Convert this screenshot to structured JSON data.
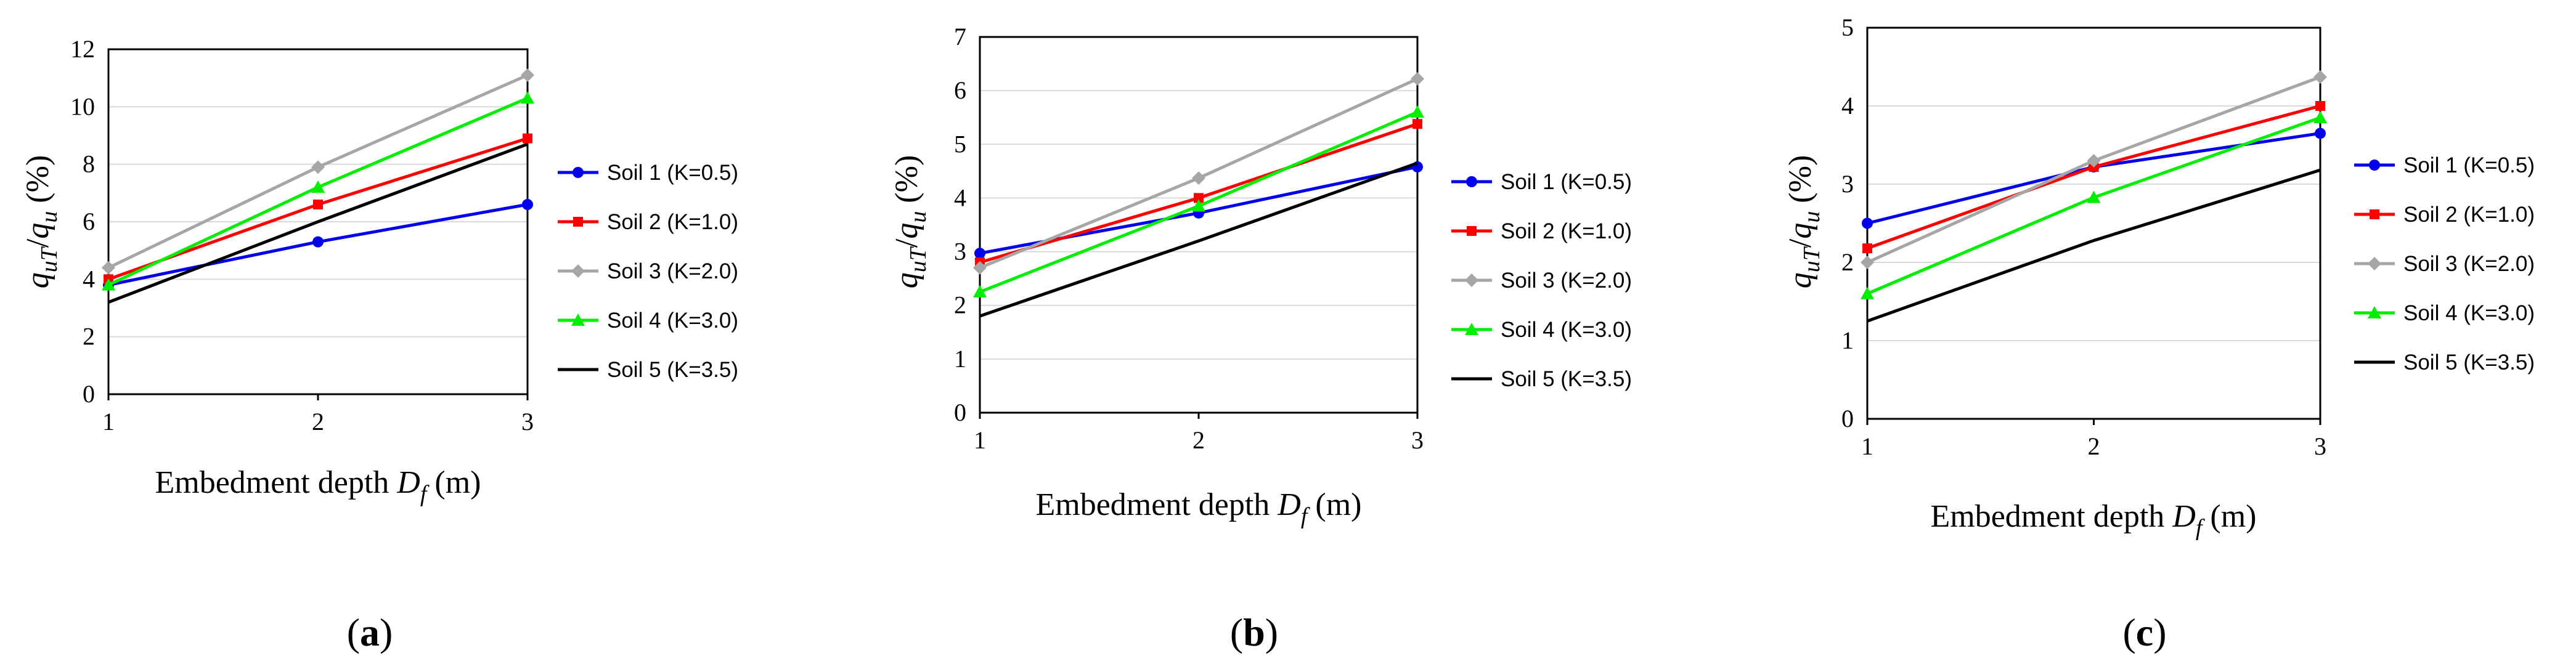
{
  "colors": {
    "soil1": "#0000ee",
    "soil2": "#ff0000",
    "soil3": "#a6a6a6",
    "soil4": "#00ee00",
    "soil5": "#000000",
    "grid": "#d9d9d9",
    "axis": "#000000"
  },
  "chart_data": [
    {
      "type": "line",
      "panel_label": "a",
      "xlabel": "Embedment depth",
      "xlabel_symbol": "D",
      "xlabel_sub": "f",
      "xlabel_unit": "(m)",
      "ylabel": "q_uT/q_u (%)",
      "x": [
        1,
        2,
        3
      ],
      "xlim": [
        1,
        3
      ],
      "ylim": [
        0,
        12
      ],
      "yticks": [
        0,
        2,
        4,
        6,
        8,
        10,
        12
      ],
      "xticks": [
        1,
        2,
        3
      ],
      "grid": true,
      "legend_position": "right",
      "series": [
        {
          "name": "Soil 1 (K=0.5)",
          "values": [
            3.8,
            5.3,
            6.6
          ],
          "color_key": "soil1",
          "marker": "circle"
        },
        {
          "name": "Soil 2 (K=1.0)",
          "values": [
            4.0,
            6.6,
            8.9
          ],
          "color_key": "soil2",
          "marker": "square"
        },
        {
          "name": "Soil 3 (K=2.0)",
          "values": [
            4.4,
            7.9,
            11.1
          ],
          "color_key": "soil3",
          "marker": "diamond"
        },
        {
          "name": "Soil 4 (K=3.0)",
          "values": [
            3.8,
            7.2,
            10.3
          ],
          "color_key": "soil4",
          "marker": "triangle"
        },
        {
          "name": "Soil 5 (K=3.5)",
          "values": [
            3.2,
            6.0,
            8.7
          ],
          "color_key": "soil5",
          "marker": "none"
        }
      ]
    },
    {
      "type": "line",
      "panel_label": "b",
      "xlabel": "Embedment depth",
      "xlabel_symbol": "D",
      "xlabel_sub": "f",
      "xlabel_unit": "(m)",
      "ylabel": "q_uT/q_u (%)",
      "x": [
        1,
        2,
        3
      ],
      "xlim": [
        1,
        3
      ],
      "ylim": [
        0,
        7
      ],
      "yticks": [
        0,
        1,
        2,
        3,
        4,
        5,
        6,
        7
      ],
      "xticks": [
        1,
        2,
        3
      ],
      "grid": true,
      "legend_position": "right",
      "series": [
        {
          "name": "Soil 1 (K=0.5)",
          "values": [
            2.97,
            3.72,
            4.58
          ],
          "color_key": "soil1",
          "marker": "circle"
        },
        {
          "name": "Soil 2 (K=1.0)",
          "values": [
            2.8,
            4.0,
            5.38
          ],
          "color_key": "soil2",
          "marker": "square"
        },
        {
          "name": "Soil 3 (K=2.0)",
          "values": [
            2.7,
            4.37,
            6.22
          ],
          "color_key": "soil3",
          "marker": "diamond"
        },
        {
          "name": "Soil 4 (K=3.0)",
          "values": [
            2.25,
            3.85,
            5.6
          ],
          "color_key": "soil4",
          "marker": "triangle"
        },
        {
          "name": "Soil 5 (K=3.5)",
          "values": [
            1.8,
            3.2,
            4.65
          ],
          "color_key": "soil5",
          "marker": "none"
        }
      ]
    },
    {
      "type": "line",
      "panel_label": "c",
      "xlabel": "Embedment depth",
      "xlabel_symbol": "D",
      "xlabel_sub": "f",
      "xlabel_unit": "(m)",
      "ylabel": "q_uT/q_u (%)",
      "x": [
        1,
        2,
        3
      ],
      "xlim": [
        1,
        3
      ],
      "ylim": [
        0,
        5
      ],
      "yticks": [
        0,
        1,
        2,
        3,
        4,
        5
      ],
      "xticks": [
        1,
        2,
        3
      ],
      "grid": true,
      "legend_position": "right",
      "series": [
        {
          "name": "Soil 1 (K=0.5)",
          "values": [
            2.5,
            3.22,
            3.65
          ],
          "color_key": "soil1",
          "marker": "circle"
        },
        {
          "name": "Soil 2 (K=1.0)",
          "values": [
            2.18,
            3.22,
            4.0
          ],
          "color_key": "soil2",
          "marker": "square"
        },
        {
          "name": "Soil 3 (K=2.0)",
          "values": [
            2.0,
            3.3,
            4.37
          ],
          "color_key": "soil3",
          "marker": "diamond"
        },
        {
          "name": "Soil 4 (K=3.0)",
          "values": [
            1.6,
            2.83,
            3.85
          ],
          "color_key": "soil4",
          "marker": "triangle"
        },
        {
          "name": "Soil 5 (K=3.5)",
          "values": [
            1.25,
            2.28,
            3.18
          ],
          "color_key": "soil5",
          "marker": "none"
        }
      ]
    }
  ]
}
